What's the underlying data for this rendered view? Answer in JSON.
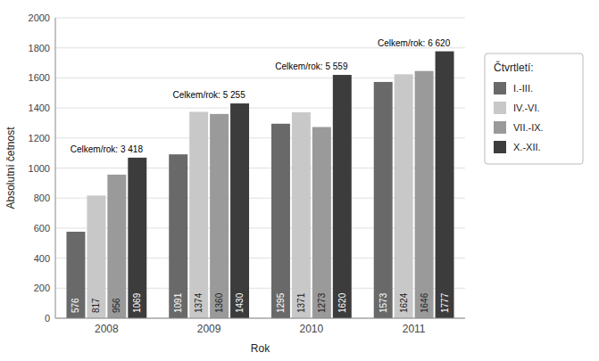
{
  "chart_data": {
    "type": "bar",
    "categories": [
      "2008",
      "2009",
      "2010",
      "2011"
    ],
    "series": [
      {
        "name": "I.-III.",
        "color": "#696969",
        "values": [
          576,
          1091,
          1295,
          1573
        ]
      },
      {
        "name": "IV.-VI.",
        "color": "#c8c8c8",
        "values": [
          817,
          1374,
          1371,
          1624
        ]
      },
      {
        "name": "VII.-IX.",
        "color": "#9a9a9a",
        "values": [
          956,
          1360,
          1273,
          1646
        ]
      },
      {
        "name": "X.-XII.",
        "color": "#3c3c3c",
        "values": [
          1069,
          1430,
          1620,
          1777
        ]
      }
    ],
    "annotations": [
      "Celkem/rok: 3 418",
      "Celkem/rok: 5 255",
      "Celkem/rok: 5 559",
      "Celkem/rok: 6 620"
    ],
    "x_label": "Rok",
    "y_label": "Absolutní četnost",
    "legend_title": "Čtvrtletí:",
    "ylim": [
      0,
      2000
    ],
    "yticks": [
      0,
      200,
      400,
      600,
      800,
      1000,
      1200,
      1400,
      1600,
      1800,
      2000
    ],
    "grid": true,
    "legend": "right",
    "data_labels": true
  }
}
